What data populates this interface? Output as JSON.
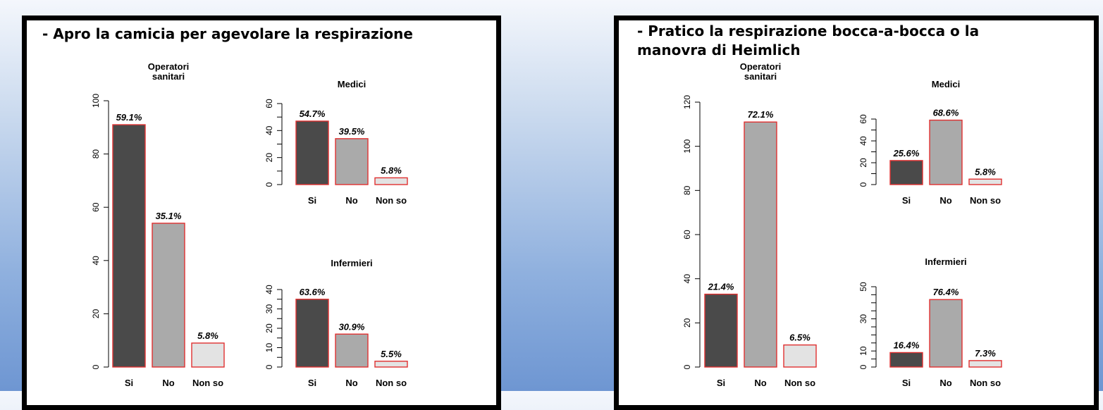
{
  "panels": [
    {
      "title": "- Apro la camicia per agevolare la respirazione",
      "colors": [
        "#4a4a4a",
        "#aaaaaa",
        "#e3e3e3"
      ],
      "bar_edge": "#e03030",
      "charts": [
        {
          "title": "Operatori\nsanitari",
          "type": "bar",
          "categories": [
            "Si",
            "No",
            "Non so"
          ],
          "values": [
            91,
            54,
            9
          ],
          "labels": [
            "59.1%",
            "35.1%",
            "5.8%"
          ],
          "ylim": [
            0,
            100
          ],
          "yticks": [
            0,
            20,
            40,
            60,
            80,
            100
          ],
          "minor": false
        },
        {
          "title": "Medici",
          "type": "bar",
          "categories": [
            "Si",
            "No",
            "Non so"
          ],
          "values": [
            47,
            34,
            5
          ],
          "labels": [
            "54.7%",
            "39.5%",
            "5.8%"
          ],
          "ylim": [
            0,
            60
          ],
          "yticks": [
            0,
            20,
            40,
            60
          ],
          "minor": true
        },
        {
          "title": "Infermieri",
          "type": "bar",
          "categories": [
            "Si",
            "No",
            "Non so"
          ],
          "values": [
            35,
            17,
            3
          ],
          "labels": [
            "63.6%",
            "30.9%",
            "5.5%"
          ],
          "ylim": [
            0,
            40
          ],
          "yticks": [
            0,
            10,
            20,
            30,
            40
          ],
          "minor": true
        }
      ]
    },
    {
      "title": "- Pratico la respirazione bocca-a-bocca o la\nmanovra di Heimlich",
      "colors": [
        "#4a4a4a",
        "#aaaaaa",
        "#e3e3e3"
      ],
      "bar_edge": "#e03030",
      "charts": [
        {
          "title": "Operatori\nsanitari",
          "type": "bar",
          "categories": [
            "Si",
            "No",
            "Non so"
          ],
          "values": [
            33,
            111,
            10
          ],
          "labels": [
            "21.4%",
            "72.1%",
            "6.5%"
          ],
          "ylim": [
            0,
            120
          ],
          "yticks": [
            0,
            20,
            40,
            60,
            80,
            100,
            120
          ],
          "minor": false
        },
        {
          "title": "Medici",
          "type": "bar",
          "categories": [
            "Si",
            "No",
            "Non so"
          ],
          "values": [
            22,
            59,
            5
          ],
          "labels": [
            "25.6%",
            "68.6%",
            "5.8%"
          ],
          "ylim": [
            0,
            60
          ],
          "yticks": [
            0,
            20,
            40,
            60
          ],
          "minor": true
        },
        {
          "title": "Infermieri",
          "type": "bar",
          "categories": [
            "Si",
            "No",
            "Non so"
          ],
          "values": [
            9,
            42,
            4
          ],
          "labels": [
            "16.4%",
            "76.4%",
            "7.3%"
          ],
          "ylim": [
            0,
            50
          ],
          "yticks": [
            0,
            10,
            30,
            50
          ],
          "minor": true
        }
      ]
    }
  ]
}
